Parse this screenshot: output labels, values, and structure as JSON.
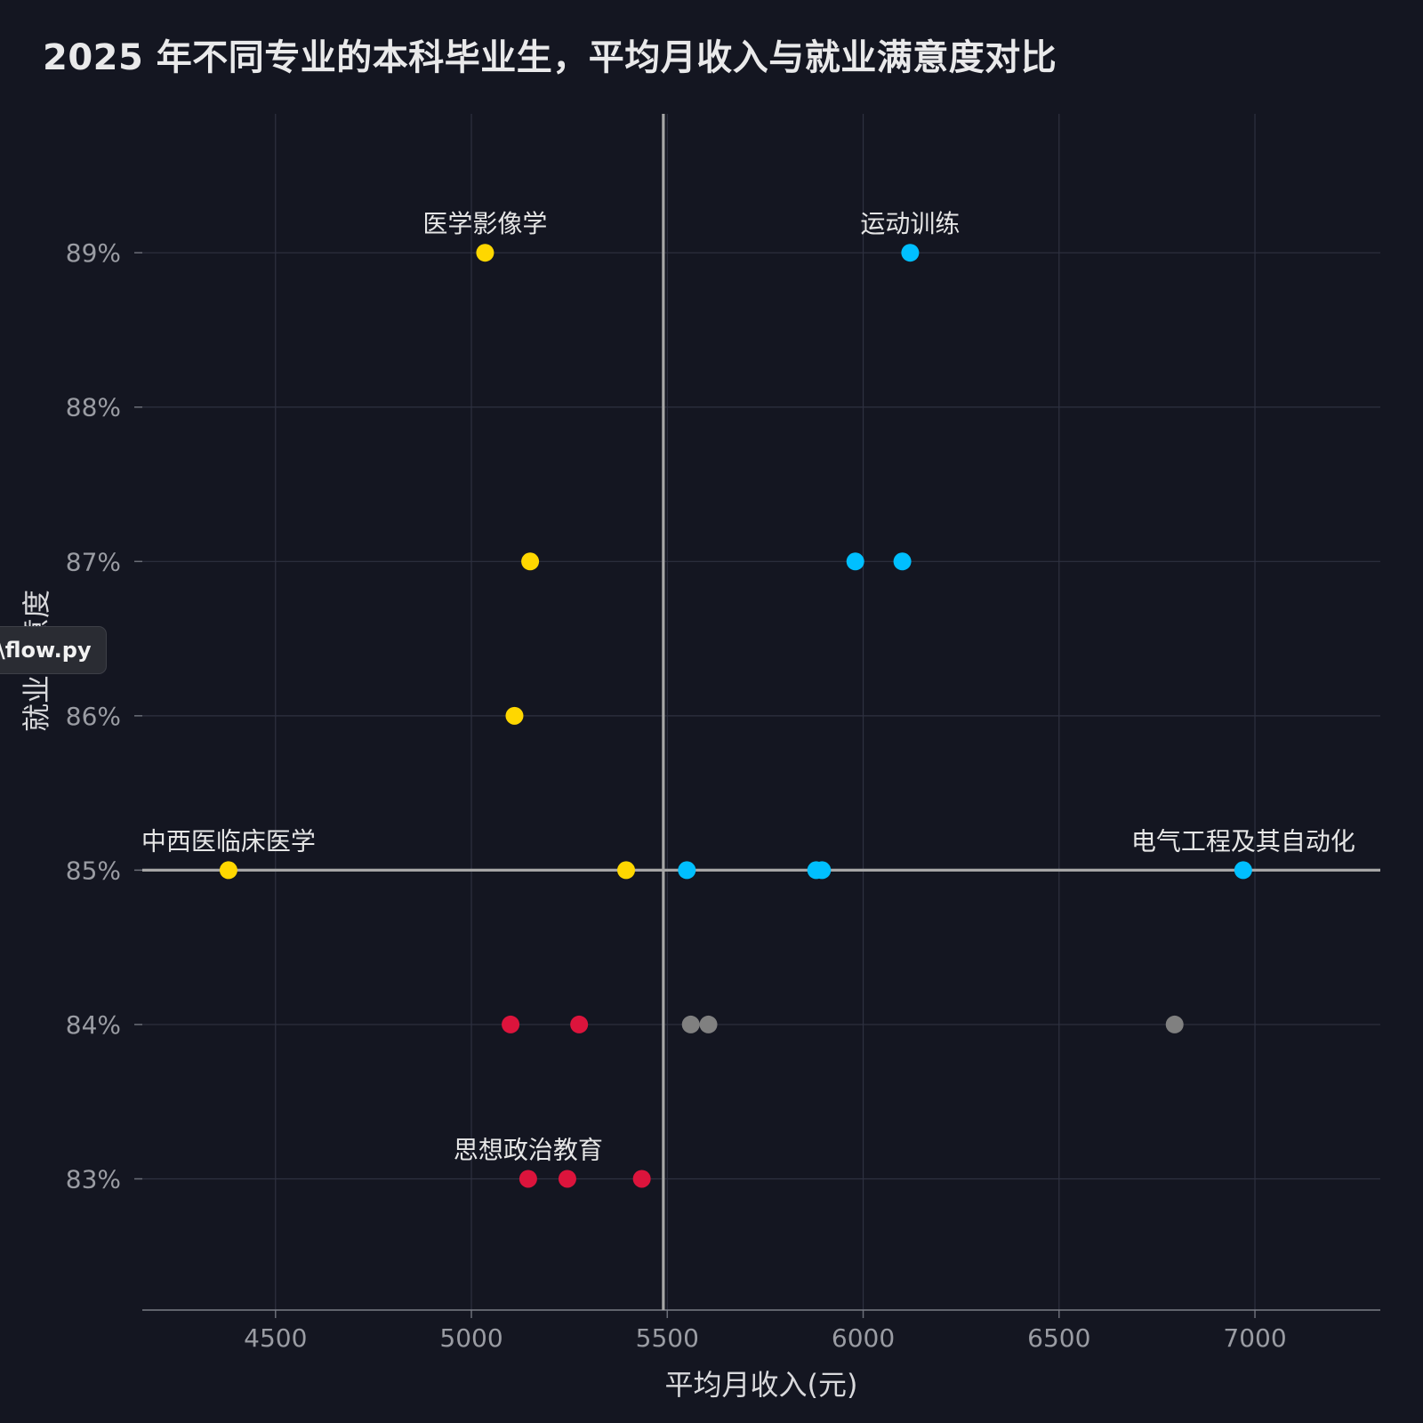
{
  "chart_data": {
    "type": "scatter",
    "title": "2025 年不同专业的本科毕业生，平均月收入与就业满意度对比",
    "xlabel": "平均月收入(元)",
    "ylabel": "就业满意度",
    "xlim": [
      4160,
      7320
    ],
    "ylim": [
      82.15,
      89.9
    ],
    "xticks": [
      4500,
      5000,
      5500,
      6000,
      6500,
      7000
    ],
    "xtick_labels": [
      "4500",
      "5000",
      "5500",
      "6000",
      "6500",
      "7000"
    ],
    "yticks": [
      83,
      84,
      85,
      86,
      87,
      88,
      89
    ],
    "ytick_labels": [
      "83%",
      "84%",
      "85%",
      "86%",
      "87%",
      "88%",
      "89%"
    ],
    "grid": true,
    "reference_lines": {
      "x": 5490,
      "y": 85
    },
    "colors": {
      "background": "#141621",
      "grid": "#2e3140",
      "reference": "#a6a6a6",
      "yellow": "#ffd700",
      "blue": "#00bfff",
      "red": "#dc143c",
      "gray": "#808080"
    },
    "points": [
      {
        "x": 5035,
        "y": 89,
        "color": "yellow",
        "label": "医学影像学"
      },
      {
        "x": 5150,
        "y": 87,
        "color": "yellow"
      },
      {
        "x": 5110,
        "y": 86,
        "color": "yellow"
      },
      {
        "x": 4380,
        "y": 85,
        "color": "yellow",
        "label": "中西医临床医学"
      },
      {
        "x": 5395,
        "y": 85,
        "color": "yellow"
      },
      {
        "x": 6120,
        "y": 89,
        "color": "blue",
        "label": "运动训练"
      },
      {
        "x": 5980,
        "y": 87,
        "color": "blue"
      },
      {
        "x": 6100,
        "y": 87,
        "color": "blue"
      },
      {
        "x": 5550,
        "y": 85,
        "color": "blue"
      },
      {
        "x": 5880,
        "y": 85,
        "color": "blue"
      },
      {
        "x": 5895,
        "y": 85,
        "color": "blue"
      },
      {
        "x": 6970,
        "y": 85,
        "color": "blue",
        "label": "电气工程及其自动化"
      },
      {
        "x": 5100,
        "y": 84,
        "color": "red"
      },
      {
        "x": 5275,
        "y": 84,
        "color": "red"
      },
      {
        "x": 5145,
        "y": 83,
        "color": "red",
        "label": "思想政治教育"
      },
      {
        "x": 5245,
        "y": 83,
        "color": "red"
      },
      {
        "x": 5435,
        "y": 83,
        "color": "red"
      },
      {
        "x": 5560,
        "y": 84,
        "color": "gray"
      },
      {
        "x": 5605,
        "y": 84,
        "color": "gray"
      },
      {
        "x": 6795,
        "y": 84,
        "color": "gray"
      }
    ]
  },
  "tooltip": {
    "text": "\\flow.py"
  }
}
